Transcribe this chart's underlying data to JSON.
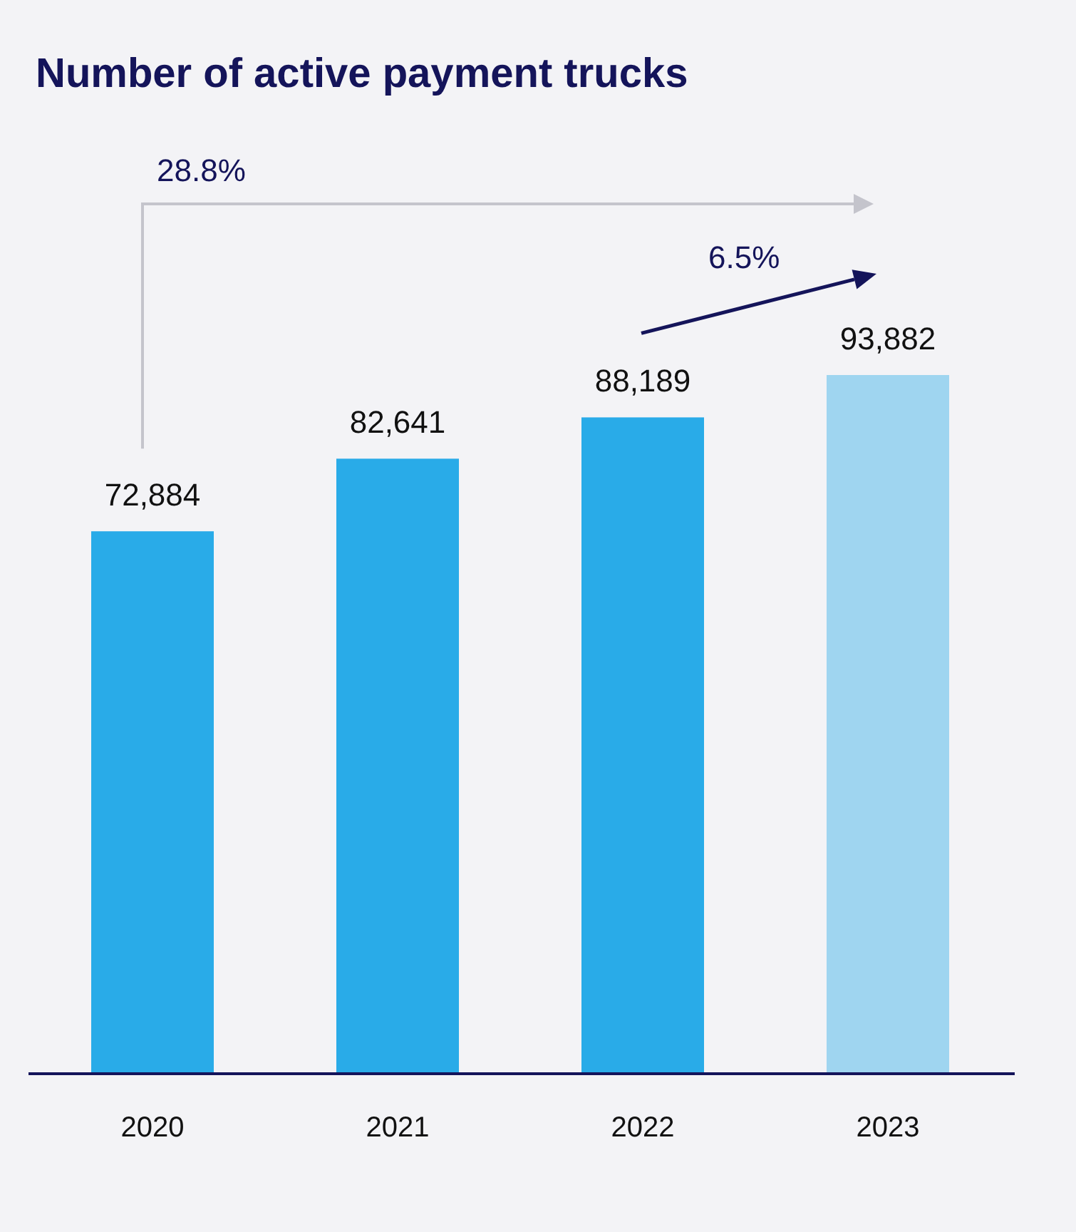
{
  "chart_data": {
    "type": "bar",
    "title": "Number of active payment trucks",
    "categories": [
      "2020",
      "2021",
      "2022",
      "2023"
    ],
    "values": [
      72884,
      82641,
      88189,
      93882
    ],
    "colors": [
      "#29abe8",
      "#29abe8",
      "#29abe8",
      "#9fd5f0"
    ],
    "value_labels": [
      "72,884",
      "82,641",
      "88,189",
      "93,882"
    ],
    "annotations": [
      "28.8%",
      "6.5%"
    ]
  }
}
